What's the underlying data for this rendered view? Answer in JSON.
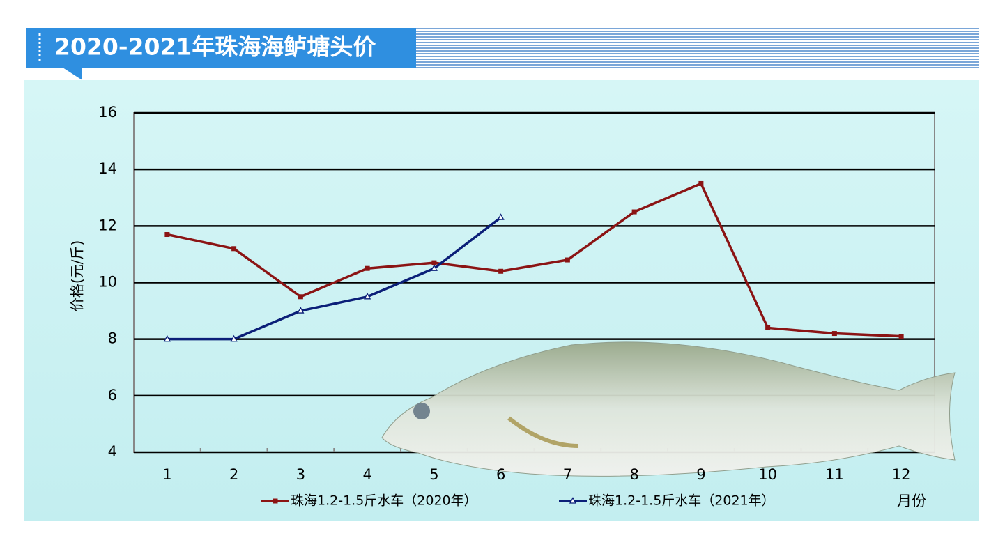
{
  "chart_data": {
    "type": "line",
    "title": "2020-2021年珠海海鲈塘头价",
    "ylabel": "价格(元/斤)",
    "xlabel": "月份",
    "categories": [
      "1",
      "2",
      "3",
      "4",
      "5",
      "6",
      "7",
      "8",
      "9",
      "10",
      "11",
      "12"
    ],
    "series": [
      {
        "name": "珠海1.2-1.5斤水车（2020年）",
        "color": "#8b1414",
        "marker": "square",
        "values": [
          11.7,
          11.2,
          9.5,
          10.5,
          10.7,
          10.4,
          10.8,
          12.5,
          13.5,
          8.4,
          8.2,
          8.1
        ]
      },
      {
        "name": "珠海1.2-1.5斤水车（2021年）",
        "color": "#0b1f78",
        "marker": "triangle",
        "values": [
          8,
          8,
          9,
          9.5,
          10.5,
          12.3,
          null,
          null,
          null,
          null,
          null,
          null
        ]
      }
    ],
    "ylim": [
      4,
      16
    ],
    "yticks": [
      4,
      6,
      8,
      10,
      12,
      14,
      16
    ],
    "grid": true
  }
}
